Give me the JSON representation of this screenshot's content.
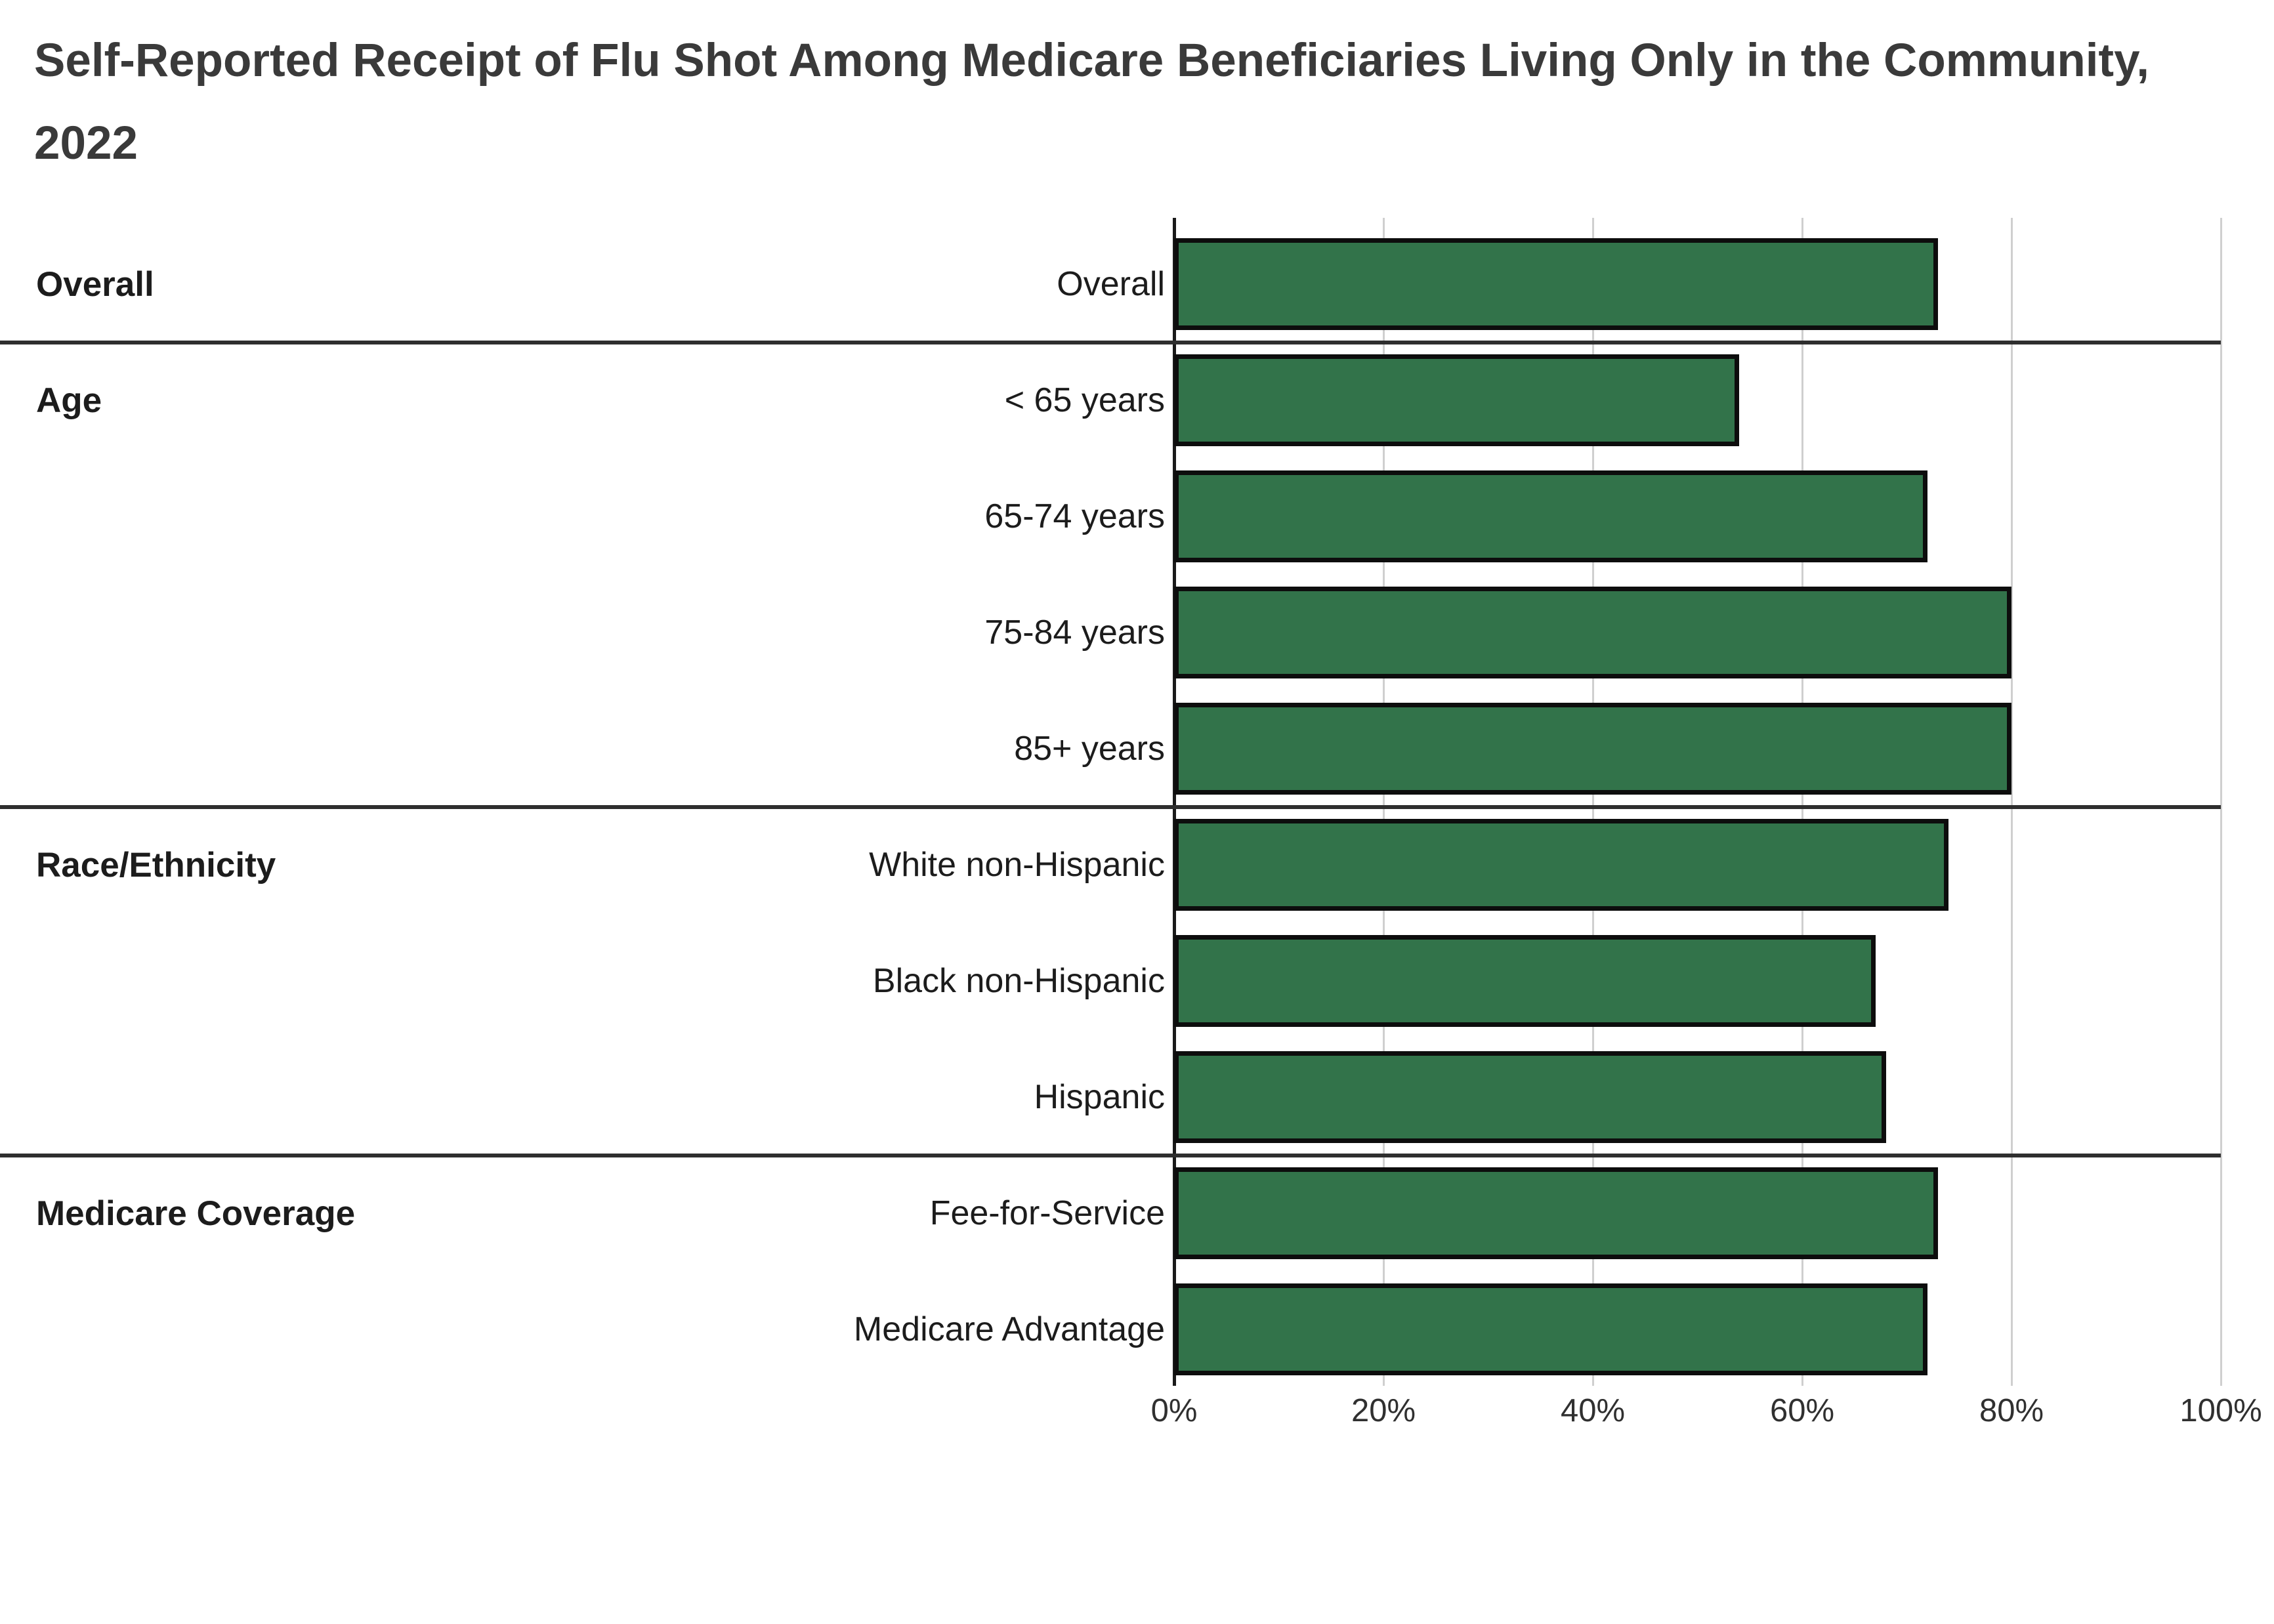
{
  "title": "Self-Reported Receipt of Flu Shot Among Medicare Beneficiaries Living Only in the Community, 2022",
  "colors": {
    "bar_fill": "#32734a",
    "bar_border": "#0d0d0d",
    "gridline": "#cfcfcf",
    "axis_line": "#1a1a1a",
    "divider": "#2e2e2e",
    "title_text": "#3a3a3a",
    "label_text": "#1c1c1c",
    "tick_text": "#303030"
  },
  "chart_data": {
    "type": "bar",
    "orientation": "horizontal",
    "title": "Self-Reported Receipt of Flu Shot Among Medicare Beneficiaries Living Only in the Community, 2022",
    "xlabel": "",
    "ylabel": "",
    "unit": "%",
    "xlim": [
      0,
      100
    ],
    "grid": true,
    "legend": "none",
    "x_ticks": [
      {
        "value": 0,
        "label": "0%"
      },
      {
        "value": 20,
        "label": "20%"
      },
      {
        "value": 40,
        "label": "40%"
      },
      {
        "value": 60,
        "label": "60%"
      },
      {
        "value": 80,
        "label": "80%"
      },
      {
        "value": 100,
        "label": "100%"
      }
    ],
    "groups": [
      {
        "label": "Overall",
        "rows": [
          {
            "label": "Overall",
            "value": 73
          }
        ]
      },
      {
        "label": "Age",
        "rows": [
          {
            "label": "< 65 years",
            "value": 54
          },
          {
            "label": "65-74 years",
            "value": 72
          },
          {
            "label": "75-84 years",
            "value": 80
          },
          {
            "label": "85+ years",
            "value": 80
          }
        ]
      },
      {
        "label": "Race/Ethnicity",
        "rows": [
          {
            "label": "White non-Hispanic",
            "value": 74
          },
          {
            "label": "Black non-Hispanic",
            "value": 67
          },
          {
            "label": "Hispanic",
            "value": 68
          }
        ]
      },
      {
        "label": "Medicare Coverage",
        "rows": [
          {
            "label": "Fee-for-Service",
            "value": 73
          },
          {
            "label": "Medicare Advantage",
            "value": 72
          }
        ]
      }
    ]
  }
}
